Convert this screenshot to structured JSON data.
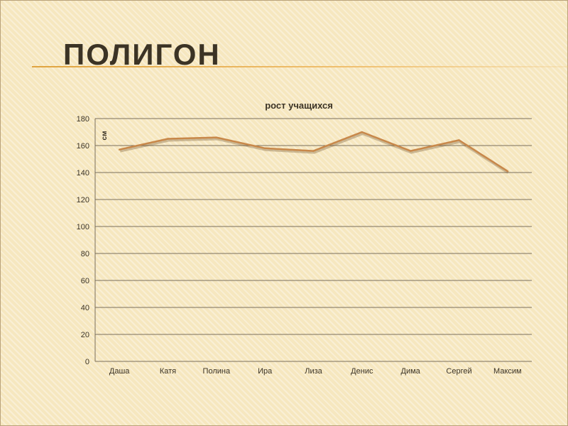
{
  "slide": {
    "title": "ПОЛИГОН",
    "accent_color": "#e0a440"
  },
  "chart_data": {
    "type": "line",
    "title": "рост учащихся",
    "xlabel": "",
    "ylabel": "см",
    "categories": [
      "Даша",
      "Катя",
      "Полина",
      "Ира",
      "Лиза",
      "Денис",
      "Дима",
      "Сергей",
      "Максим"
    ],
    "series": [
      {
        "values": [
          157,
          165,
          166,
          158,
          156,
          170,
          156,
          164,
          141
        ],
        "color": "#c8884a"
      }
    ],
    "ylim": [
      0,
      180
    ],
    "yticks": [
      0,
      20,
      40,
      60,
      80,
      100,
      120,
      140,
      160,
      180
    ],
    "grid": true,
    "legend": "none"
  }
}
